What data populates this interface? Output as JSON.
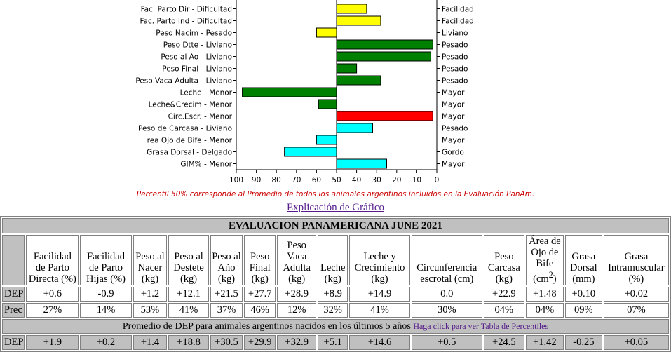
{
  "chart_data": {
    "type": "bar",
    "orientation": "horizontal",
    "x_axis_reversed": true,
    "xlim": [
      100,
      0
    ],
    "xticks": [
      "100",
      "90",
      "80",
      "70",
      "60",
      "50",
      "40",
      "30",
      "20",
      "10",
      "0"
    ],
    "baseline": 50,
    "rows": [
      {
        "left": "Fac. Parto Dir - Dificultad",
        "right": "Facilidad",
        "value": 35,
        "color": "#ffff00"
      },
      {
        "left": "Fac. Parto Ind - Dificultad",
        "right": "Facilidad",
        "value": 28,
        "color": "#ffff00"
      },
      {
        "left": "Peso Nacim - Pesado",
        "right": "Liviano",
        "value": 60,
        "color": "#ffff00"
      },
      {
        "left": "Peso Dtte - Liviano",
        "right": "Pesado",
        "value": 2,
        "color": "#008000"
      },
      {
        "left": "Peso al Ao - Liviano",
        "right": "Pesado",
        "value": 3,
        "color": "#008000"
      },
      {
        "left": "Peso Final - Liviano",
        "right": "Pesado",
        "value": 40,
        "color": "#008000"
      },
      {
        "left": "Peso Vaca Adulta - Liviano",
        "right": "Pesado",
        "value": 28,
        "color": "#008000"
      },
      {
        "left": "Leche - Menor",
        "right": "Mayor",
        "value": 97,
        "color": "#008000"
      },
      {
        "left": "Leche&Crecim - Menor",
        "right": "Mayor",
        "value": 59,
        "color": "#008000"
      },
      {
        "left": "Circ.Escr. - Menor",
        "right": "Mayor",
        "value": 2,
        "color": "#ff0000"
      },
      {
        "left": "Peso de Carcasa - Liviano",
        "right": "Pesado",
        "value": 32,
        "color": "#00ffff"
      },
      {
        "left": "rea Ojo de Bife - Menor",
        "right": "Mayor",
        "value": 60,
        "color": "#00ffff"
      },
      {
        "left": "Grasa Dorsal - Delgado",
        "right": "Gordo",
        "value": 76,
        "color": "#00ffff"
      },
      {
        "left": "GIM% - Menor",
        "right": "Mayor",
        "value": 25,
        "color": "#00ffff"
      }
    ]
  },
  "note": "Percentil 50% corresponde al Promedio de todos los animales argentinos incluidos en la Evaluación PanAm.",
  "explain_link": "Explicación de Gráfico",
  "table": {
    "title": "EVALUACION PANAMERICANA JUNE 2021",
    "headers": [
      "Facilidad de Parto Directa (%)",
      "Facilidad de Parto Hijas (%)",
      "Peso al Nacer (kg)",
      "Peso al Destete (kg)",
      "Peso al Año (kg)",
      "Peso Final (kg)",
      "Peso Vaca Adulta (kg)",
      "Leche (kg)",
      "Leche y Crecimiento (kg)",
      "Circunferencia escrotal (cm)",
      "Peso Carcasa (kg)",
      "Área de Ojo de Bife (cm2)",
      "Grasa Dorsal (mm)",
      "Grasa Intramuscular (%)"
    ],
    "dep_label": "DEP",
    "dep": [
      "+0.6",
      "-0.9",
      "+1.2",
      "+12.1",
      "+21.5",
      "+27.7",
      "+28.9",
      "+8.9",
      "+14.9",
      "0.0",
      "+22.9",
      "+1.48",
      "+0.10",
      "+0.02"
    ],
    "prec_label": "Prec",
    "prec": [
      "27%",
      "14%",
      "53%",
      "41%",
      "37%",
      "46%",
      "12%",
      "32%",
      "41%",
      "30%",
      "04%",
      "04%",
      "09%",
      "07%"
    ],
    "avg_text": "Promedio de DEP para animales argentinos nacidos en los últimos 5 años",
    "avg_link": "Haga click para ver Tabla de Percentiles",
    "avg_label": "DEP",
    "avg_dep": [
      "+1.9",
      "+0.2",
      "+1.4",
      "+18.8",
      "+30.5",
      "+29.9",
      "+32.9",
      "+5.1",
      "+14.6",
      "+0.5",
      "+24.5",
      "+1.42",
      "-0.25",
      "+0.05"
    ]
  }
}
